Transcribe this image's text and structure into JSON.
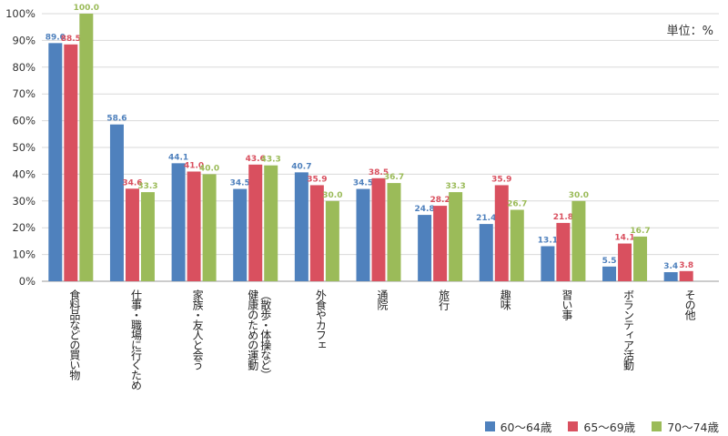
{
  "chart_data": {
    "type": "bar",
    "unit_label": "単位：%",
    "ylim": [
      0,
      100
    ],
    "y_ticks": [
      "0%",
      "10%",
      "20%",
      "30%",
      "40%",
      "50%",
      "60%",
      "70%",
      "80%",
      "90%",
      "100%"
    ],
    "categories": [
      [
        "食料品などの買い物"
      ],
      [
        "仕事・職場に行くため"
      ],
      [
        "家族・友人と会う"
      ],
      [
        "健康のための運動",
        "（散歩・体操など）"
      ],
      [
        "外食やカフェ"
      ],
      [
        "通院"
      ],
      [
        "旅行"
      ],
      [
        "趣味"
      ],
      [
        "習い事"
      ],
      [
        "ボランティア活動"
      ],
      [
        "その他"
      ]
    ],
    "series": [
      {
        "name": "60〜64歳",
        "color": "#4f81bd",
        "values": [
          89.0,
          58.6,
          44.1,
          34.5,
          40.7,
          34.5,
          24.8,
          21.4,
          13.1,
          5.5,
          3.4
        ]
      },
      {
        "name": "65〜69歳",
        "color": "#d9505f",
        "values": [
          88.5,
          34.6,
          41.0,
          43.6,
          35.9,
          38.5,
          28.2,
          35.9,
          21.8,
          14.1,
          3.8
        ]
      },
      {
        "name": "70〜74歳",
        "color": "#9bbb59",
        "values": [
          100.0,
          33.3,
          40.0,
          43.3,
          30.0,
          36.7,
          33.3,
          26.7,
          30.0,
          16.7,
          null
        ]
      }
    ],
    "grid": true,
    "legend": "bottom-right"
  }
}
